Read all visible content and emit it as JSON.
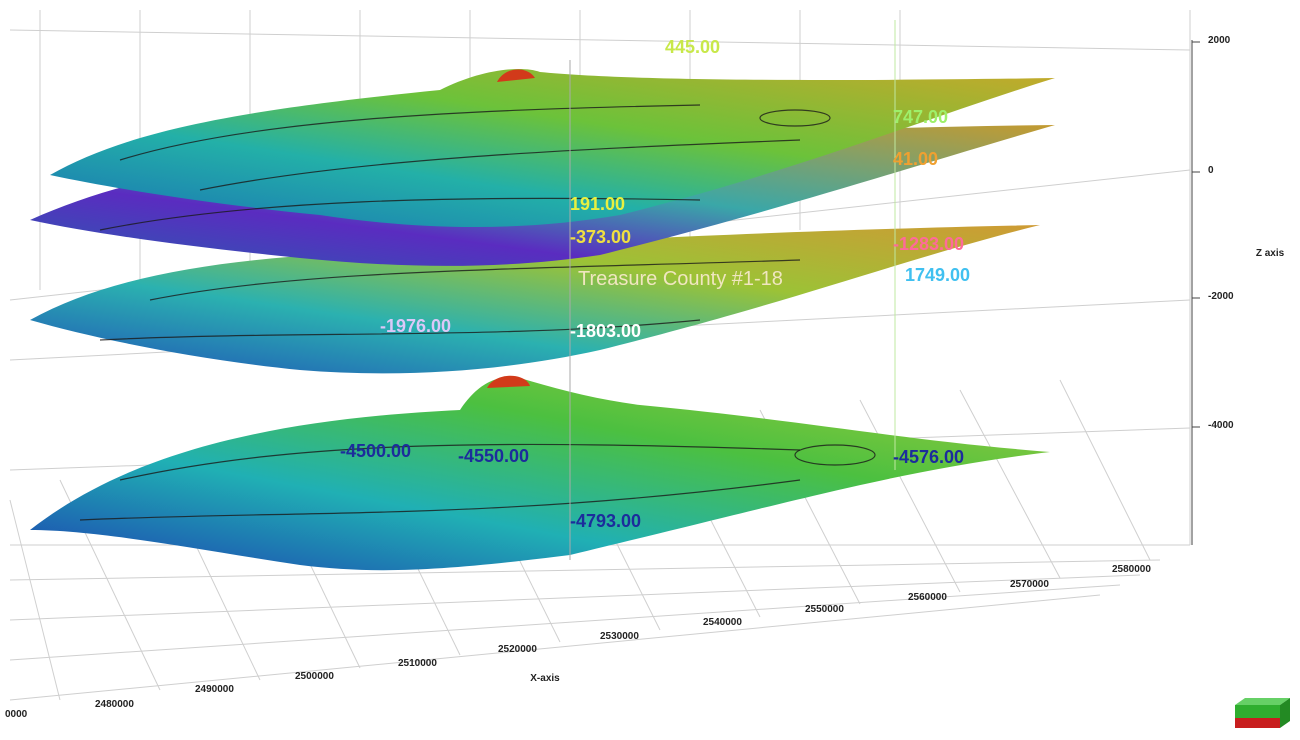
{
  "z_axis": {
    "label": "Z axis",
    "ticks": [
      "2000",
      "0",
      "-2000",
      "-4000"
    ]
  },
  "x_axis": {
    "label": "X-axis",
    "ticks": [
      "0000",
      "2480000",
      "2490000",
      "2500000",
      "2510000",
      "2520000",
      "2530000",
      "2540000",
      "2550000",
      "2560000",
      "2570000",
      "2580000"
    ]
  },
  "annotations": [
    "445.00",
    "747.00",
    "41.00",
    "191.00",
    "-373.00",
    "-1283.00",
    "1749.00",
    "Treasure County #1-18",
    "-1976.00",
    "-1803.00",
    "-4500.00",
    "-4550.00",
    "-4576.00",
    "-4793.00"
  ]
}
